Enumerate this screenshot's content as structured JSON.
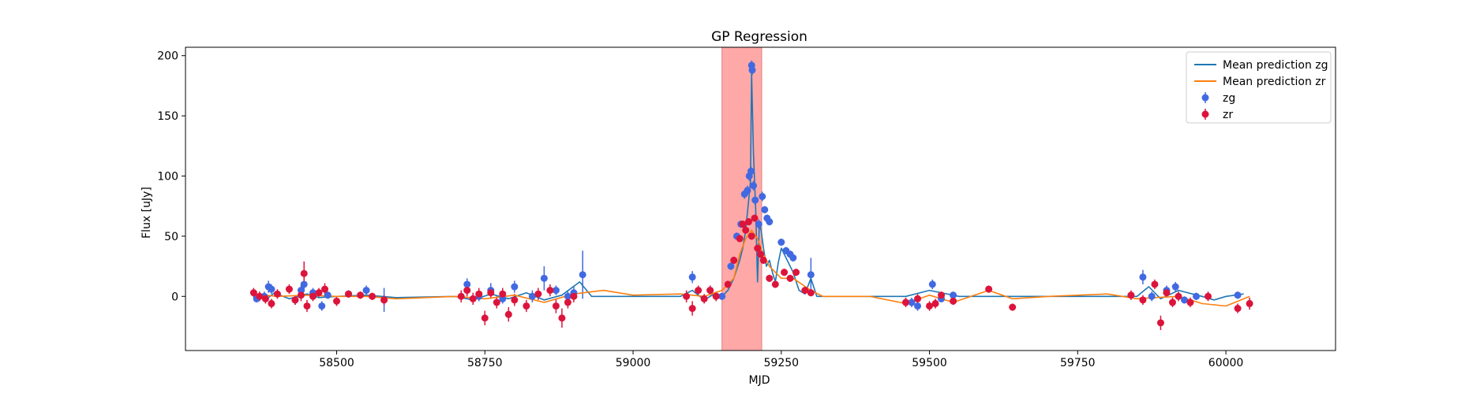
{
  "chart_data": {
    "type": "scatter",
    "title": "GP Regression",
    "xlabel": "MJD",
    "ylabel": "Flux [uJy]",
    "xlim": [
      58245,
      60185
    ],
    "ylim": [
      -45,
      207
    ],
    "xticks": [
      58500,
      58750,
      59000,
      59250,
      59500,
      59750,
      60000
    ],
    "yticks": [
      0,
      50,
      100,
      150,
      200
    ],
    "xtick_labels": [
      "58500",
      "58750",
      "59000",
      "59250",
      "59500",
      "59750",
      "60000"
    ],
    "ytick_labels": [
      "0",
      "50",
      "100",
      "150",
      "200"
    ],
    "legend_position": "top-right",
    "shaded_region": {
      "x_start": 59150,
      "x_end": 59217,
      "color": "#ff9999"
    },
    "series": [
      {
        "name": "Mean prediction zg",
        "kind": "line",
        "color": "#1f77b4",
        "x": [
          58360,
          58380,
          58395,
          58420,
          58450,
          58470,
          58500,
          58550,
          58600,
          58700,
          58730,
          58760,
          58790,
          58820,
          58850,
          58880,
          58910,
          58930,
          59000,
          59080,
          59100,
          59120,
          59140,
          59150,
          59160,
          59170,
          59180,
          59185,
          59190,
          59195,
          59198,
          59200,
          59203,
          59207,
          59210,
          59213,
          59216,
          59220,
          59225,
          59230,
          59235,
          59240,
          59245,
          59250,
          59260,
          59270,
          59280,
          59290,
          59300,
          59310,
          59330,
          59400,
          59460,
          59500,
          59550,
          59600,
          59700,
          59800,
          59850,
          59870,
          59890,
          59920,
          59960,
          59980,
          60000,
          60030
        ],
        "y": [
          1,
          -3,
          3,
          -2,
          2,
          -1,
          0,
          1,
          -1,
          0,
          -3,
          2,
          -2,
          3,
          -3,
          1,
          12,
          0,
          0,
          0,
          5,
          -3,
          3,
          0,
          5,
          15,
          30,
          40,
          55,
          80,
          95,
          185,
          120,
          70,
          12,
          60,
          55,
          40,
          25,
          30,
          20,
          12,
          28,
          40,
          30,
          20,
          5,
          2,
          15,
          0,
          0,
          0,
          0,
          5,
          0,
          0,
          0,
          0,
          0,
          8,
          -2,
          5,
          0,
          -3,
          0,
          2
        ]
      },
      {
        "name": "Mean prediction zr",
        "kind": "line",
        "color": "#ff7f0e",
        "x": [
          58360,
          58400,
          58450,
          58500,
          58550,
          58600,
          58700,
          58750,
          58800,
          58850,
          58900,
          58950,
          59000,
          59080,
          59120,
          59150,
          59170,
          59180,
          59190,
          59200,
          59210,
          59220,
          59230,
          59250,
          59270,
          59300,
          59320,
          59400,
          59460,
          59500,
          59540,
          59600,
          59640,
          59700,
          59800,
          59850,
          59880,
          59920,
          59960,
          60000,
          60040
        ],
        "y": [
          2,
          0,
          1,
          0,
          0,
          -2,
          0,
          -2,
          1,
          -5,
          2,
          5,
          1,
          2,
          0,
          5,
          15,
          35,
          48,
          55,
          48,
          35,
          25,
          15,
          15,
          5,
          0,
          0,
          -6,
          1,
          -5,
          5,
          -2,
          0,
          2,
          -2,
          -1,
          0,
          -6,
          -8,
          0
        ]
      },
      {
        "name": "zg",
        "kind": "points",
        "color": "#4169e1",
        "x": [
          58365,
          58378,
          58385,
          58390,
          58430,
          58440,
          58445,
          58460,
          58475,
          58485,
          58520,
          58550,
          58580,
          58720,
          58740,
          58760,
          58780,
          58800,
          58830,
          58850,
          58870,
          58890,
          58900,
          58915,
          59100,
          59130,
          59150,
          59165,
          59175,
          59182,
          59188,
          59193,
          59196,
          59199,
          59200,
          59201,
          59203,
          59206,
          59212,
          59218,
          59222,
          59226,
          59230,
          59250,
          59258,
          59265,
          59270,
          59300,
          59470,
          59480,
          59505,
          59520,
          59540,
          59860,
          59875,
          59900,
          59915,
          59930,
          59950,
          60020
        ],
        "y": [
          -2,
          0,
          8,
          6,
          -3,
          5,
          10,
          3,
          -8,
          1,
          2,
          5,
          -3,
          10,
          0,
          5,
          -2,
          8,
          0,
          15,
          5,
          0,
          3,
          18,
          16,
          5,
          0,
          25,
          50,
          60,
          85,
          88,
          100,
          104,
          192,
          188,
          92,
          80,
          60,
          83,
          72,
          65,
          62,
          45,
          38,
          35,
          32,
          18,
          -5,
          -8,
          10,
          -2,
          1,
          16,
          0,
          5,
          8,
          -3,
          0,
          1
        ],
        "err": [
          3,
          4,
          5,
          4,
          4,
          5,
          6,
          4,
          4,
          3,
          3,
          4,
          10,
          5,
          4,
          6,
          4,
          5,
          5,
          10,
          4,
          4,
          5,
          20,
          5,
          4,
          3,
          3,
          3,
          3,
          4,
          4,
          4,
          4,
          4,
          4,
          4,
          4,
          4,
          4,
          3,
          3,
          3,
          3,
          3,
          3,
          3,
          14,
          4,
          4,
          4,
          3,
          3,
          6,
          4,
          4,
          4,
          3,
          3,
          3
        ]
      },
      {
        "name": "zr",
        "kind": "points",
        "color": "#dc143c",
        "x": [
          58360,
          58370,
          58380,
          58390,
          58400,
          58420,
          58430,
          58440,
          58445,
          58450,
          58460,
          58470,
          58480,
          58500,
          58520,
          58540,
          58560,
          58580,
          58710,
          58720,
          58730,
          58740,
          58750,
          58760,
          58770,
          58780,
          58790,
          58800,
          58820,
          58840,
          58860,
          58870,
          58880,
          58890,
          58900,
          59090,
          59100,
          59110,
          59120,
          59130,
          59140,
          59160,
          59170,
          59180,
          59185,
          59190,
          59195,
          59200,
          59205,
          59210,
          59215,
          59220,
          59230,
          59240,
          59255,
          59265,
          59275,
          59290,
          59300,
          59460,
          59480,
          59500,
          59510,
          59520,
          59540,
          59600,
          59640,
          59840,
          59860,
          59880,
          59890,
          59900,
          59910,
          59920,
          59940,
          59970,
          60020,
          60040
        ],
        "y": [
          3,
          0,
          -2,
          -6,
          2,
          6,
          -3,
          1,
          19,
          -8,
          0,
          3,
          6,
          -4,
          2,
          1,
          0,
          -3,
          0,
          5,
          -2,
          2,
          -18,
          3,
          -5,
          2,
          -15,
          -3,
          -8,
          2,
          5,
          -8,
          -18,
          -5,
          0,
          0,
          -10,
          5,
          -2,
          5,
          0,
          10,
          30,
          48,
          60,
          55,
          62,
          50,
          65,
          40,
          35,
          30,
          15,
          10,
          20,
          15,
          20,
          5,
          3,
          -5,
          -2,
          -8,
          -6,
          1,
          -4,
          6,
          -9,
          1,
          -3,
          10,
          -22,
          3,
          -5,
          0,
          -5,
          0,
          -10,
          -6
        ],
        "err": [
          4,
          4,
          4,
          4,
          4,
          4,
          4,
          5,
          10,
          5,
          4,
          4,
          5,
          4,
          3,
          3,
          3,
          4,
          5,
          5,
          5,
          5,
          6,
          5,
          5,
          5,
          6,
          5,
          5,
          5,
          5,
          6,
          8,
          5,
          5,
          5,
          6,
          4,
          4,
          4,
          4,
          3,
          3,
          3,
          3,
          3,
          3,
          3,
          3,
          3,
          3,
          3,
          3,
          3,
          3,
          3,
          3,
          3,
          3,
          4,
          4,
          4,
          4,
          3,
          3,
          3,
          3,
          4,
          4,
          4,
          6,
          4,
          4,
          4,
          4,
          4,
          4,
          5
        ]
      }
    ]
  }
}
